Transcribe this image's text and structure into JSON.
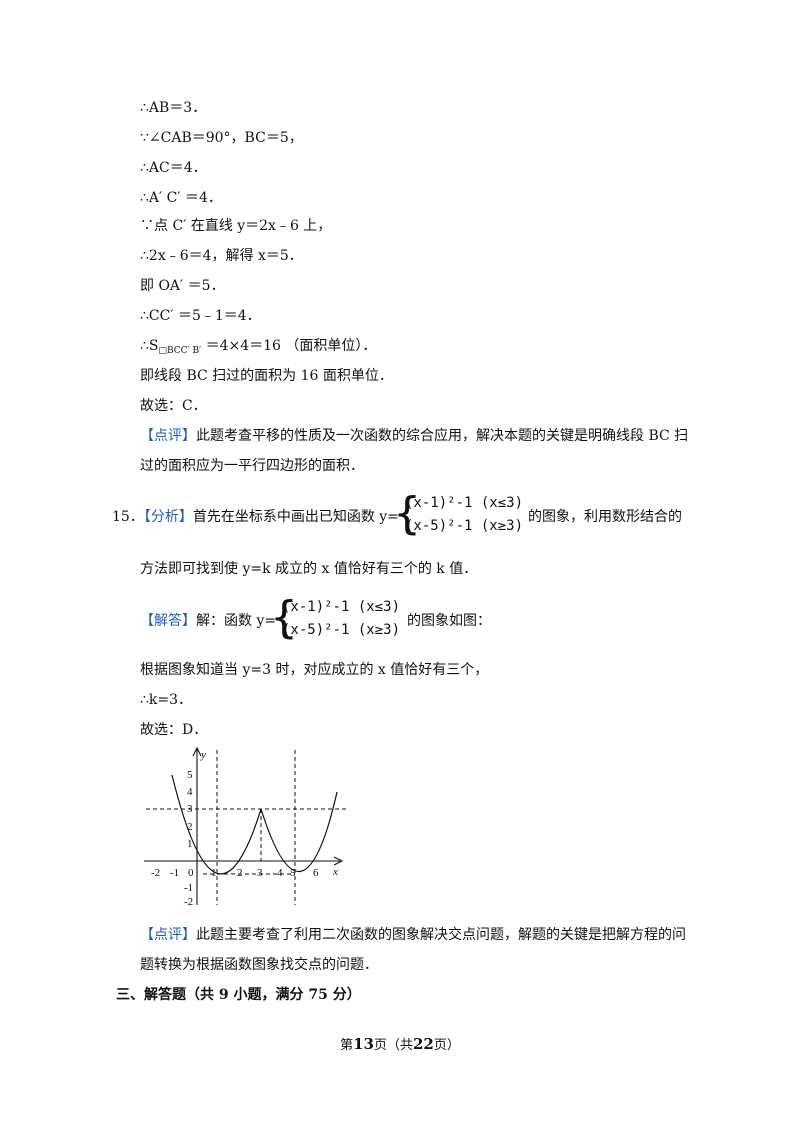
{
  "lines": {
    "l1": "∴AB＝3．",
    "l2": "∵∠CAB＝90°，BC＝5，",
    "l3": "∴AC＝4．",
    "l4": "∴A′ C′ ＝4．",
    "l5": "∵点 C′ 在直线 y＝2x﹣6 上，",
    "l6": "∴2x﹣6＝4，解得 x＝5．",
    "l7": "即 OA′ ＝5．",
    "l8": "∴CC′ ＝5﹣1＝4．",
    "l9a": "∴S",
    "l9sub": "□BCC′ B′",
    "l9b": " ＝4×4＝16 （面积单位）．",
    "l10": "即线段 BC 扫过的面积为 16 面积单位．",
    "l11": "故选：C．",
    "comment1_tag": "【点评】",
    "comment1_a": "此题考查平移的性质及一次函数的综合应用，解决本题的关键是明确线段 BC 扫",
    "comment1_b": "过的面积应为一平行四边形的面积．",
    "q15_num": "15．",
    "q15_tag": "【分析】",
    "q15_text": "首先在坐标系中画出已知函数 y=",
    "q15_tail": "的图象，利用数形结合的",
    "q15_line2": "方法即可找到使 y=k 成立的 x 值恰好有三个的 k 值．",
    "case1": "(x-1)²-1 (x≤3)",
    "case2": "(x-5)²-1 (x≥3)",
    "answer_tag": "【解答】",
    "answer_text": "解：函数 y=",
    "answer_tail": "的图象如图：",
    "l_graph": "根据图象知道当 y=3 时，对应成立的 x 值恰好有三个，",
    "l_k": "∴k=3．",
    "l_choice": "故选：D．",
    "comment2_tag": "【点评】",
    "comment2_a": "此题主要考查了利用二次函数的图象解决交点问题，解题的关键是把解方程的问",
    "comment2_b": "题转换为根据函数图象找交点的问题．",
    "section": "三、解答题（共 9 小题，满分 75 分）"
  },
  "footer": {
    "prefix": "第",
    "page": "13",
    "mid": "页（共",
    "total": "22",
    "suffix": "页）"
  },
  "graph": {
    "ylabel": "y",
    "xlabel": "x",
    "xticks": [
      "-2",
      "-1",
      "0",
      "1",
      "2",
      "3",
      "4",
      "5",
      "6"
    ],
    "yticks": [
      "5",
      "4",
      "3",
      "2",
      "1",
      "-1",
      "-2"
    ]
  },
  "colors": {
    "tag": "#1f5fb7"
  }
}
